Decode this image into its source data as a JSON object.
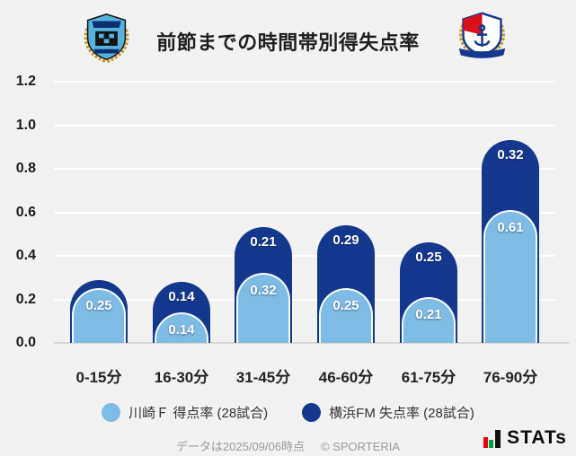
{
  "header": {
    "title": "前節までの時間帯別得失点率"
  },
  "icons": {
    "left_logo": "kawasaki-frontale-crest",
    "right_logo": "yokohama-f-marinos-crest",
    "brand_icon": "stats-bars-icon"
  },
  "chart_data": {
    "type": "bar",
    "variant": "stacked-rounded-columns",
    "title": "前節までの時間帯別得失点率",
    "categories": [
      "0-15分",
      "16-30分",
      "31-45分",
      "46-60分",
      "61-75分",
      "76-90分"
    ],
    "series": [
      {
        "name": "川崎Ｆ 得点率 (28試合)",
        "role": "front-light-bar",
        "color": "#7FBCE5",
        "values": [
          0.25,
          0.14,
          0.32,
          0.25,
          0.21,
          0.61
        ],
        "labels": [
          "0.25",
          "0.14",
          "0.32",
          "0.25",
          "0.21",
          "0.61"
        ]
      },
      {
        "name": "横浜FM 失点率 (28試合)",
        "role": "back-dark-bar-stacked-on-front",
        "color": "#14388E",
        "values": [
          0.04,
          0.14,
          0.21,
          0.29,
          0.25,
          0.32
        ],
        "labels": [
          "",
          "0.14",
          "0.21",
          "0.29",
          "0.25",
          "0.32"
        ]
      }
    ],
    "note": "Back dark bar height = front value + back value (stacked). 0-15分 dark segment label is not displayed because the segment is too small.",
    "ylim": [
      0,
      1.2
    ],
    "yticks": [
      "0.0",
      "0.2",
      "0.4",
      "0.6",
      "0.8",
      "1.0",
      "1.2"
    ],
    "grid": true,
    "legend_position": "bottom-center",
    "xlabel": "",
    "ylabel": ""
  },
  "footer": {
    "note": "データは2025/09/06時点",
    "copyright": "© SPORTERIA",
    "brand": "STATs"
  },
  "colors": {
    "background": "#F2F2F2",
    "gridline": "#FFFFFF",
    "baseline": "#D6D6D6",
    "axis_text": "#1B1B1B",
    "value_text": "#FFFFFF",
    "footer_text": "#9A9A9A",
    "stats_red": "#E60012",
    "stats_green": "#00A040"
  }
}
